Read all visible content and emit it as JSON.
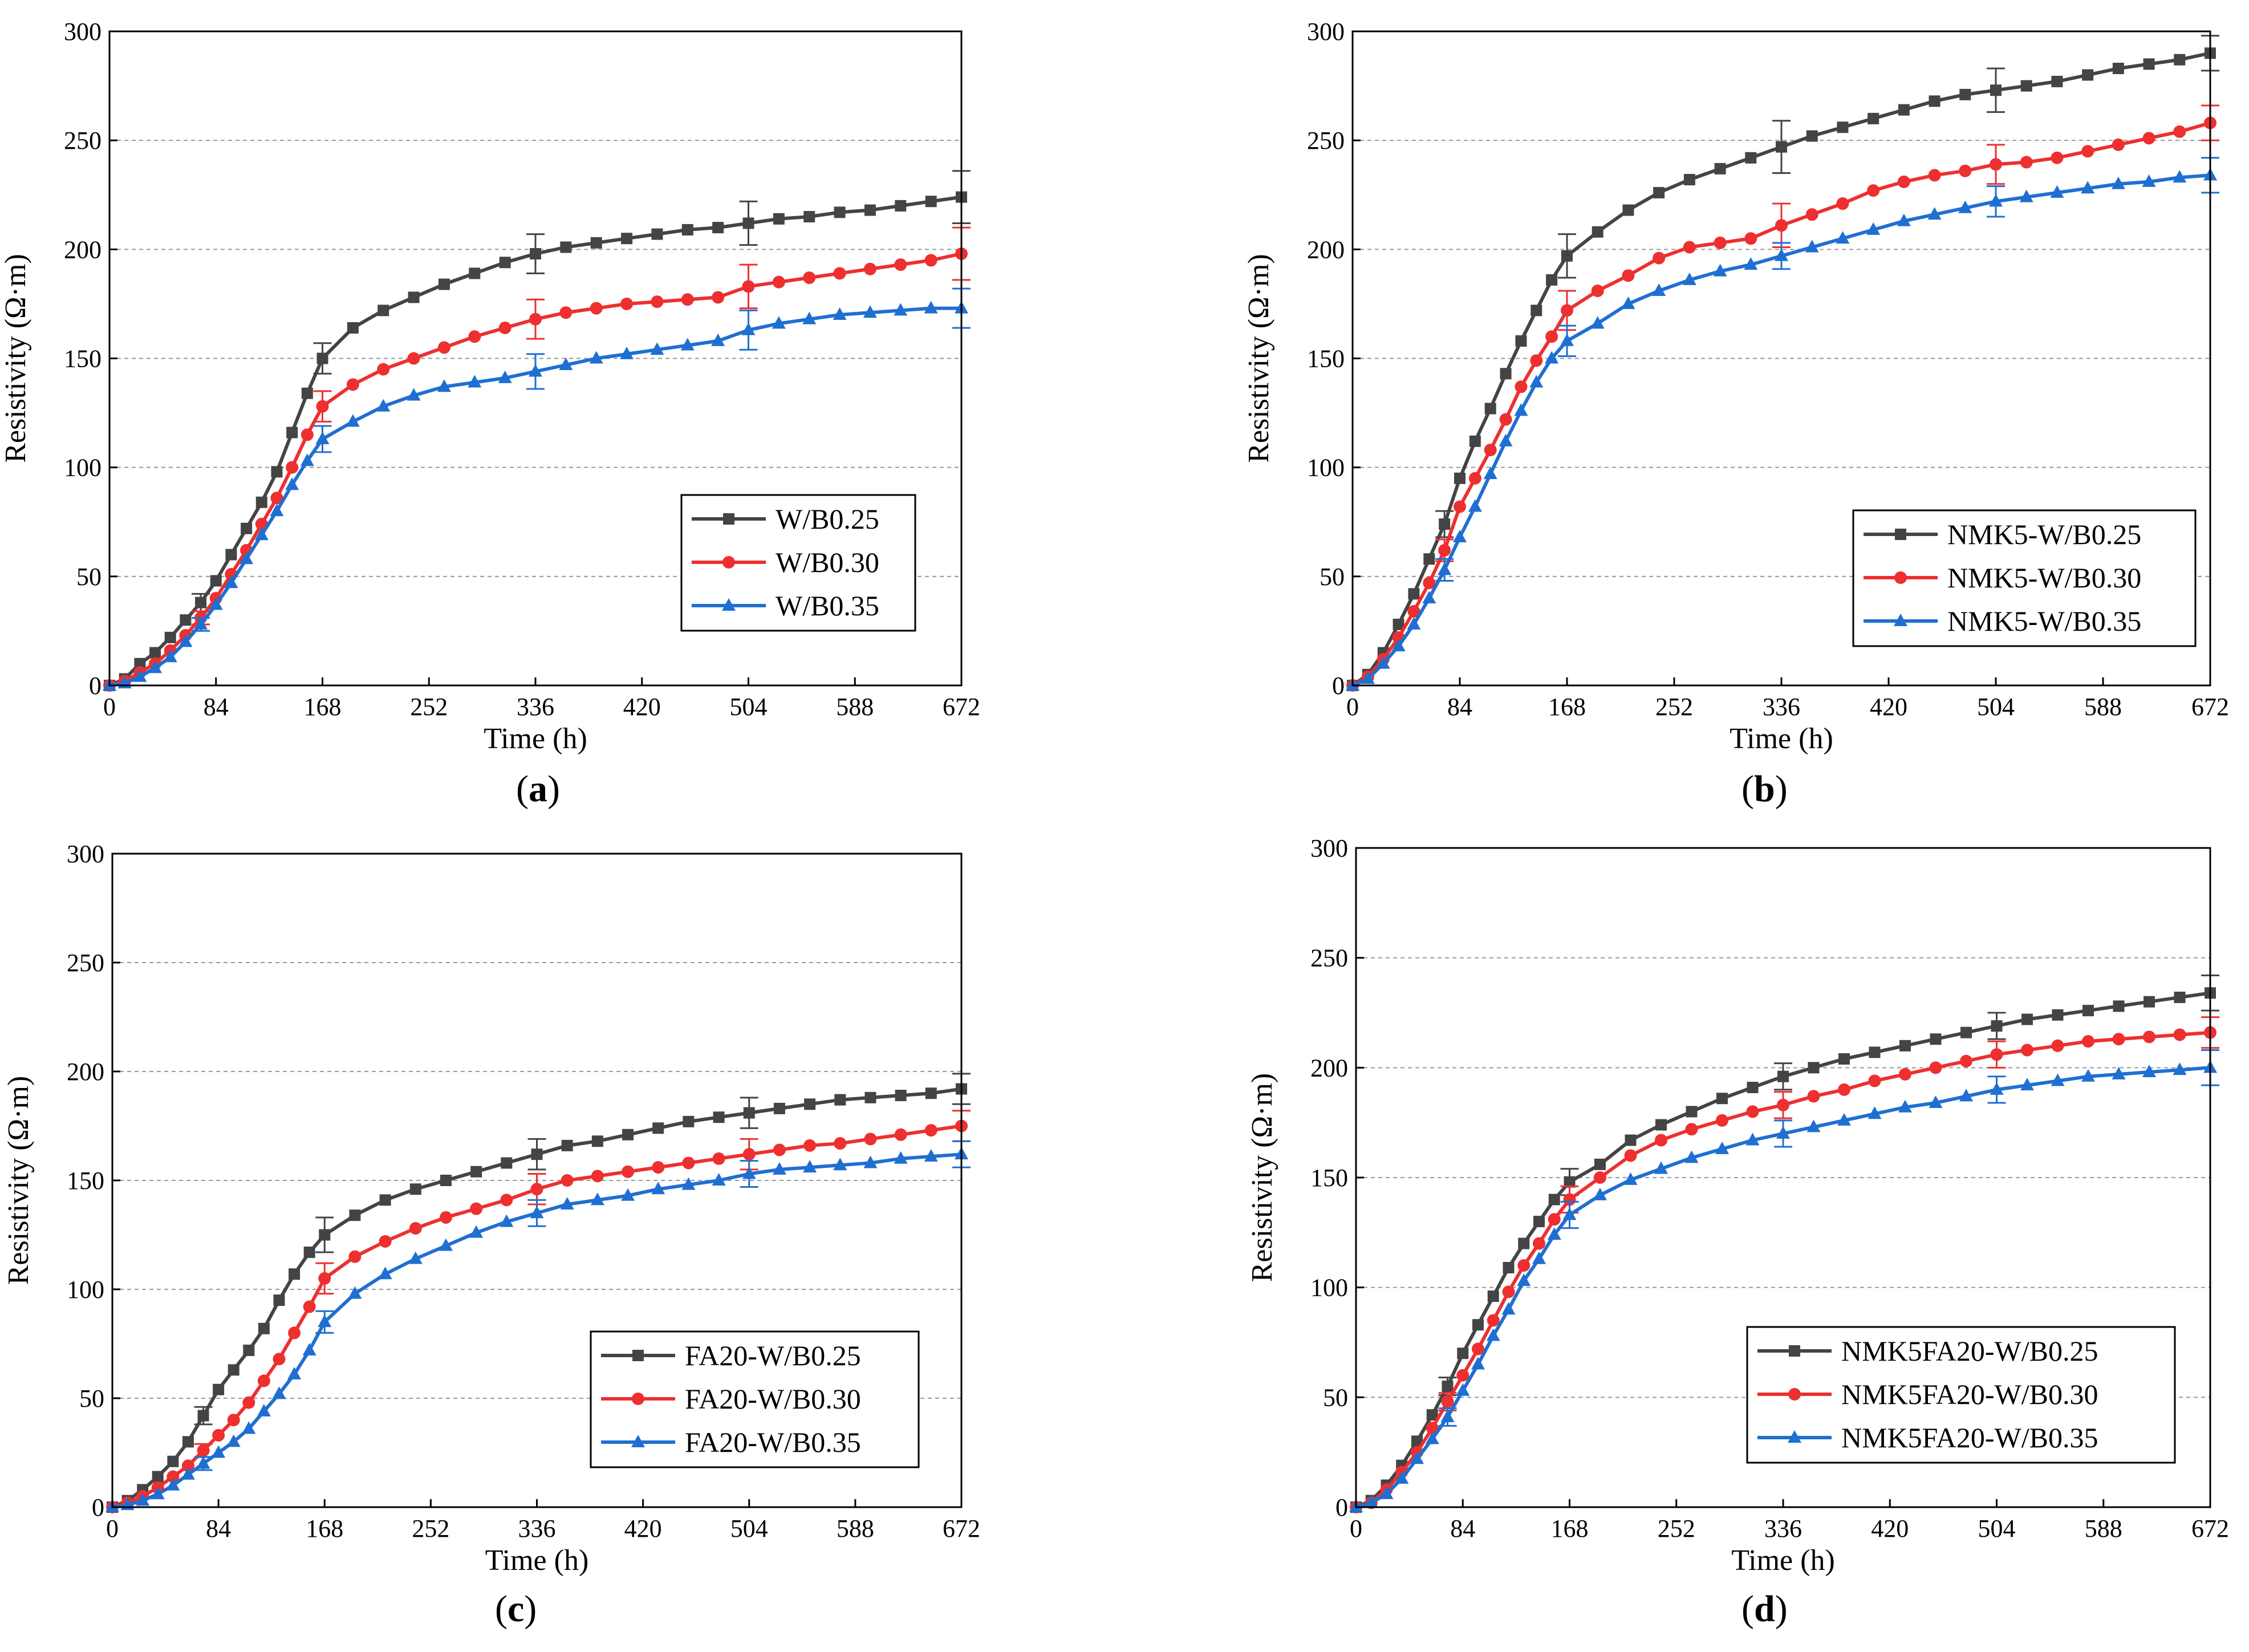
{
  "colors": {
    "series_1": "#444444",
    "series_2": "#ee2f2f",
    "series_3": "#1f6fd2",
    "grid": "#9a9a9a",
    "axis": "#000000"
  },
  "chart_data": [
    {
      "type": "line",
      "panel_label": "a",
      "xlabel": "Time (h)",
      "ylabel": "Resistivity (Ω·m)",
      "xlim": [
        0,
        672
      ],
      "ylim": [
        0,
        300
      ],
      "xticks": [
        0,
        84,
        168,
        252,
        336,
        420,
        504,
        588,
        672
      ],
      "yticks": [
        0,
        50,
        100,
        150,
        200,
        250,
        300
      ],
      "grid": "horizontal-dashed",
      "legend_position": "lower-right",
      "x": [
        0,
        12,
        24,
        36,
        48,
        60,
        72,
        84,
        96,
        108,
        120,
        132,
        144,
        156,
        168,
        192,
        216,
        240,
        264,
        288,
        312,
        336,
        360,
        384,
        408,
        432,
        456,
        480,
        504,
        528,
        552,
        576,
        600,
        624,
        648,
        672
      ],
      "series": [
        {
          "name": "W/B0.25",
          "marker": "square",
          "color": "#444444",
          "values": [
            0,
            3,
            10,
            15,
            22,
            30,
            38,
            48,
            60,
            72,
            84,
            98,
            116,
            134,
            150,
            164,
            172,
            178,
            184,
            189,
            194,
            198,
            201,
            203,
            205,
            207,
            209,
            210,
            212,
            214,
            215,
            217,
            218,
            220,
            222,
            224
          ],
          "error_bars": [
            {
              "x": 72,
              "err": 4
            },
            {
              "x": 168,
              "err": 7
            },
            {
              "x": 336,
              "err": 9
            },
            {
              "x": 504,
              "err": 10
            },
            {
              "x": 672,
              "err": 12
            }
          ]
        },
        {
          "name": "W/B0.30",
          "marker": "circle",
          "color": "#ee2f2f",
          "values": [
            0,
            2,
            6,
            10,
            16,
            23,
            31,
            40,
            51,
            62,
            74,
            86,
            100,
            115,
            128,
            138,
            145,
            150,
            155,
            160,
            164,
            168,
            171,
            173,
            175,
            176,
            177,
            178,
            183,
            185,
            187,
            189,
            191,
            193,
            195,
            198
          ],
          "error_bars": [
            {
              "x": 72,
              "err": 3
            },
            {
              "x": 168,
              "err": 7
            },
            {
              "x": 336,
              "err": 9
            },
            {
              "x": 504,
              "err": 10
            },
            {
              "x": 672,
              "err": 12
            }
          ]
        },
        {
          "name": "W/B0.35",
          "marker": "triangle",
          "color": "#1f6fd2",
          "values": [
            0,
            1,
            4,
            8,
            13,
            20,
            28,
            37,
            47,
            58,
            69,
            80,
            92,
            103,
            113,
            121,
            128,
            133,
            137,
            139,
            141,
            144,
            147,
            150,
            152,
            154,
            156,
            158,
            163,
            166,
            168,
            170,
            171,
            172,
            173,
            173
          ],
          "error_bars": [
            {
              "x": 72,
              "err": 3
            },
            {
              "x": 168,
              "err": 6
            },
            {
              "x": 336,
              "err": 8
            },
            {
              "x": 504,
              "err": 9
            },
            {
              "x": 672,
              "err": 9
            }
          ]
        }
      ]
    },
    {
      "type": "line",
      "panel_label": "b",
      "xlabel": "Time (h)",
      "ylabel": "Resistivity (Ω·m)",
      "xlim": [
        0,
        672
      ],
      "ylim": [
        0,
        300
      ],
      "xticks": [
        0,
        84,
        168,
        252,
        336,
        420,
        504,
        588,
        672
      ],
      "yticks": [
        0,
        50,
        100,
        150,
        200,
        250,
        300
      ],
      "grid": "horizontal-dashed",
      "legend_position": "lower-right",
      "x": [
        0,
        12,
        24,
        36,
        48,
        60,
        72,
        84,
        96,
        108,
        120,
        132,
        144,
        156,
        168,
        192,
        216,
        240,
        264,
        288,
        312,
        336,
        360,
        384,
        408,
        432,
        456,
        480,
        504,
        528,
        552,
        576,
        600,
        624,
        648,
        672
      ],
      "series": [
        {
          "name": "NMK5-W/B0.25",
          "marker": "square",
          "color": "#444444",
          "values": [
            0,
            5,
            15,
            28,
            42,
            58,
            74,
            95,
            112,
            127,
            143,
            158,
            172,
            186,
            197,
            208,
            218,
            226,
            232,
            237,
            242,
            247,
            252,
            256,
            260,
            264,
            268,
            271,
            273,
            275,
            277,
            280,
            283,
            285,
            287,
            290
          ],
          "error_bars": [
            {
              "x": 72,
              "err": 6
            },
            {
              "x": 168,
              "err": 10
            },
            {
              "x": 336,
              "err": 12
            },
            {
              "x": 504,
              "err": 10
            },
            {
              "x": 672,
              "err": 8
            }
          ]
        },
        {
          "name": "NMK5-W/B0.30",
          "marker": "circle",
          "color": "#ee2f2f",
          "values": [
            0,
            4,
            12,
            22,
            34,
            47,
            62,
            82,
            95,
            108,
            122,
            137,
            149,
            160,
            172,
            181,
            188,
            196,
            201,
            203,
            205,
            211,
            216,
            221,
            227,
            231,
            234,
            236,
            239,
            240,
            242,
            245,
            248,
            251,
            254,
            258
          ],
          "error_bars": [
            {
              "x": 72,
              "err": 5
            },
            {
              "x": 168,
              "err": 9
            },
            {
              "x": 336,
              "err": 10
            },
            {
              "x": 504,
              "err": 9
            },
            {
              "x": 672,
              "err": 8
            }
          ]
        },
        {
          "name": "NMK5-W/B0.35",
          "marker": "triangle",
          "color": "#1f6fd2",
          "values": [
            0,
            3,
            10,
            18,
            28,
            40,
            53,
            68,
            82,
            97,
            112,
            126,
            139,
            150,
            158,
            166,
            175,
            181,
            186,
            190,
            193,
            197,
            201,
            205,
            209,
            213,
            216,
            219,
            222,
            224,
            226,
            228,
            230,
            231,
            233,
            234
          ],
          "error_bars": [
            {
              "x": 72,
              "err": 5
            },
            {
              "x": 168,
              "err": 7
            },
            {
              "x": 336,
              "err": 6
            },
            {
              "x": 504,
              "err": 7
            },
            {
              "x": 672,
              "err": 8
            }
          ]
        }
      ]
    },
    {
      "type": "line",
      "panel_label": "c",
      "xlabel": "Time (h)",
      "ylabel": "Resistivity (Ω·m)",
      "xlim": [
        0,
        672
      ],
      "ylim": [
        0,
        300
      ],
      "xticks": [
        0,
        84,
        168,
        252,
        336,
        420,
        504,
        588,
        672
      ],
      "yticks": [
        0,
        50,
        100,
        150,
        200,
        250,
        300
      ],
      "grid": "horizontal-dashed",
      "legend_position": "lower-right",
      "x": [
        0,
        12,
        24,
        36,
        48,
        60,
        72,
        84,
        96,
        108,
        120,
        132,
        144,
        156,
        168,
        192,
        216,
        240,
        264,
        288,
        312,
        336,
        360,
        384,
        408,
        432,
        456,
        480,
        504,
        528,
        552,
        576,
        600,
        624,
        648,
        672
      ],
      "series": [
        {
          "name": "FA20-W/B0.25",
          "marker": "square",
          "color": "#444444",
          "values": [
            0,
            3,
            8,
            14,
            21,
            30,
            42,
            54,
            63,
            72,
            82,
            95,
            107,
            117,
            125,
            134,
            141,
            146,
            150,
            154,
            158,
            162,
            166,
            168,
            171,
            174,
            177,
            179,
            181,
            183,
            185,
            187,
            188,
            189,
            190,
            192
          ],
          "error_bars": [
            {
              "x": 72,
              "err": 4
            },
            {
              "x": 168,
              "err": 8
            },
            {
              "x": 336,
              "err": 7
            },
            {
              "x": 504,
              "err": 7
            },
            {
              "x": 672,
              "err": 7
            }
          ]
        },
        {
          "name": "FA20-W/B0.30",
          "marker": "circle",
          "color": "#ee2f2f",
          "values": [
            0,
            2,
            5,
            9,
            14,
            19,
            26,
            33,
            40,
            48,
            58,
            68,
            80,
            92,
            105,
            115,
            122,
            128,
            133,
            137,
            141,
            146,
            150,
            152,
            154,
            156,
            158,
            160,
            162,
            164,
            166,
            167,
            169,
            171,
            173,
            175
          ],
          "error_bars": [
            {
              "x": 72,
              "err": 3
            },
            {
              "x": 168,
              "err": 7
            },
            {
              "x": 336,
              "err": 7
            },
            {
              "x": 504,
              "err": 7
            },
            {
              "x": 672,
              "err": 7
            }
          ]
        },
        {
          "name": "FA20-W/B0.35",
          "marker": "triangle",
          "color": "#1f6fd2",
          "values": [
            0,
            1,
            3,
            6,
            10,
            15,
            20,
            25,
            30,
            36,
            44,
            52,
            61,
            72,
            85,
            98,
            107,
            114,
            120,
            126,
            131,
            135,
            139,
            141,
            143,
            146,
            148,
            150,
            153,
            155,
            156,
            157,
            158,
            160,
            161,
            162
          ],
          "error_bars": [
            {
              "x": 72,
              "err": 3
            },
            {
              "x": 168,
              "err": 5
            },
            {
              "x": 336,
              "err": 6
            },
            {
              "x": 504,
              "err": 6
            },
            {
              "x": 672,
              "err": 6
            }
          ]
        }
      ]
    },
    {
      "type": "line",
      "panel_label": "d",
      "xlabel": "Time (h)",
      "ylabel": "Resistivity (Ω·m)",
      "xlim": [
        0,
        672
      ],
      "ylim": [
        0,
        300
      ],
      "xticks": [
        0,
        84,
        168,
        252,
        336,
        420,
        504,
        588,
        672
      ],
      "yticks": [
        0,
        50,
        100,
        150,
        200,
        250,
        300
      ],
      "grid": "horizontal-dashed",
      "legend_position": "lower-right",
      "x": [
        0,
        12,
        24,
        36,
        48,
        60,
        72,
        84,
        96,
        108,
        120,
        132,
        144,
        156,
        168,
        192,
        216,
        240,
        264,
        288,
        312,
        336,
        360,
        384,
        408,
        432,
        456,
        480,
        504,
        528,
        552,
        576,
        600,
        624,
        648,
        672
      ],
      "series": [
        {
          "name": "NMK5FA20-W/B0.25",
          "marker": "square",
          "color": "#444444",
          "values": [
            0,
            3,
            10,
            19,
            30,
            42,
            55,
            70,
            83,
            96,
            109,
            120,
            130,
            140,
            148,
            156,
            167,
            174,
            180,
            186,
            191,
            196,
            200,
            204,
            207,
            210,
            213,
            216,
            219,
            222,
            224,
            226,
            228,
            230,
            232,
            234
          ],
          "error_bars": [
            {
              "x": 72,
              "err": 4
            },
            {
              "x": 168,
              "err": 6
            },
            {
              "x": 336,
              "err": 6
            },
            {
              "x": 504,
              "err": 6
            },
            {
              "x": 672,
              "err": 8
            }
          ]
        },
        {
          "name": "NMK5FA20-W/B0.30",
          "marker": "circle",
          "color": "#ee2f2f",
          "values": [
            0,
            2,
            8,
            16,
            25,
            36,
            48,
            60,
            72,
            85,
            98,
            110,
            120,
            131,
            140,
            150,
            160,
            167,
            172,
            176,
            180,
            183,
            187,
            190,
            194,
            197,
            200,
            203,
            206,
            208,
            210,
            212,
            213,
            214,
            215,
            216
          ],
          "error_bars": [
            {
              "x": 72,
              "err": 4
            },
            {
              "x": 168,
              "err": 6
            },
            {
              "x": 336,
              "err": 6
            },
            {
              "x": 504,
              "err": 6
            },
            {
              "x": 672,
              "err": 7
            }
          ]
        },
        {
          "name": "NMK5FA20-W/B0.35",
          "marker": "triangle",
          "color": "#1f6fd2",
          "values": [
            0,
            2,
            6,
            13,
            22,
            31,
            41,
            53,
            65,
            78,
            90,
            103,
            113,
            124,
            133,
            142,
            149,
            154,
            159,
            163,
            167,
            170,
            173,
            176,
            179,
            182,
            184,
            187,
            190,
            192,
            194,
            196,
            197,
            198,
            199,
            200
          ],
          "error_bars": [
            {
              "x": 72,
              "err": 4
            },
            {
              "x": 168,
              "err": 6
            },
            {
              "x": 336,
              "err": 6
            },
            {
              "x": 504,
              "err": 6
            },
            {
              "x": 672,
              "err": 8
            }
          ]
        }
      ]
    }
  ]
}
